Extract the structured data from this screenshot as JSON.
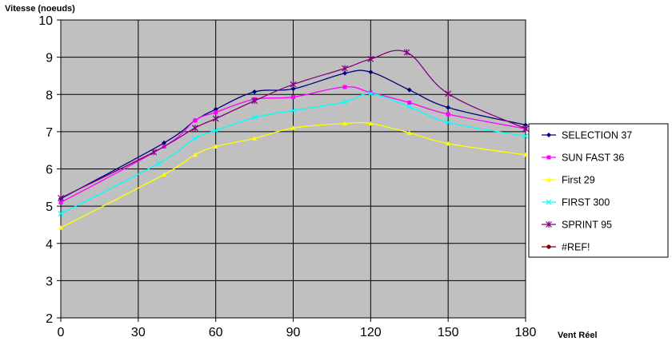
{
  "chart_data": {
    "type": "line",
    "title": "",
    "ylabel": "Vitesse (noeuds)",
    "xlabel": "Vent Réel",
    "xlim": [
      0,
      180
    ],
    "ylim": [
      2,
      10
    ],
    "xticks": [
      0,
      30,
      60,
      90,
      120,
      150,
      180
    ],
    "yticks": [
      2,
      3,
      4,
      5,
      6,
      7,
      8,
      9,
      10
    ],
    "grid": true,
    "legend_position": "right",
    "plot_background": "#c0c0c0",
    "series": [
      {
        "name": "SELECTION 37",
        "color": "#000080",
        "marker": "diamond",
        "points": [
          [
            0,
            5.2
          ],
          [
            40,
            6.7
          ],
          [
            52,
            7.3
          ],
          [
            60,
            7.6
          ],
          [
            75,
            8.07
          ],
          [
            90,
            8.15
          ],
          [
            110,
            8.57
          ],
          [
            120,
            8.6
          ],
          [
            135,
            8.12
          ],
          [
            150,
            7.65
          ],
          [
            180,
            7.18
          ]
        ]
      },
      {
        "name": "SUN FAST 36",
        "color": "#ff00ff",
        "marker": "square",
        "points": [
          [
            0,
            5.1
          ],
          [
            40,
            6.6
          ],
          [
            52,
            7.3
          ],
          [
            60,
            7.52
          ],
          [
            75,
            7.87
          ],
          [
            90,
            7.93
          ],
          [
            110,
            8.2
          ],
          [
            120,
            8.05
          ],
          [
            135,
            7.78
          ],
          [
            150,
            7.47
          ],
          [
            180,
            7.08
          ]
        ]
      },
      {
        "name": "First 29",
        "color": "#ffff00",
        "marker": "triangle",
        "points": [
          [
            0,
            4.42
          ],
          [
            40,
            5.85
          ],
          [
            52,
            6.38
          ],
          [
            60,
            6.6
          ],
          [
            75,
            6.82
          ],
          [
            90,
            7.1
          ],
          [
            110,
            7.22
          ],
          [
            120,
            7.22
          ],
          [
            135,
            6.97
          ],
          [
            150,
            6.68
          ],
          [
            180,
            6.38
          ]
        ]
      },
      {
        "name": "FIRST 300",
        "color": "#00ffff",
        "marker": "x",
        "points": [
          [
            0,
            4.8
          ],
          [
            38,
            6.15
          ],
          [
            52,
            6.82
          ],
          [
            60,
            7.03
          ],
          [
            75,
            7.38
          ],
          [
            90,
            7.57
          ],
          [
            110,
            7.8
          ],
          [
            120,
            8.02
          ],
          [
            135,
            7.67
          ],
          [
            150,
            7.25
          ],
          [
            180,
            6.88
          ]
        ]
      },
      {
        "name": "SPRINT 95",
        "color": "#800080",
        "marker": "star",
        "points": [
          [
            0,
            5.22
          ],
          [
            36,
            6.45
          ],
          [
            52,
            7.1
          ],
          [
            60,
            7.35
          ],
          [
            75,
            7.83
          ],
          [
            90,
            8.27
          ],
          [
            110,
            8.7
          ],
          [
            120,
            8.95
          ],
          [
            134,
            9.13
          ],
          [
            150,
            8.02
          ],
          [
            180,
            7.08
          ]
        ]
      },
      {
        "name": "#REF!",
        "color": "#800000",
        "marker": "circle",
        "points": []
      }
    ]
  }
}
